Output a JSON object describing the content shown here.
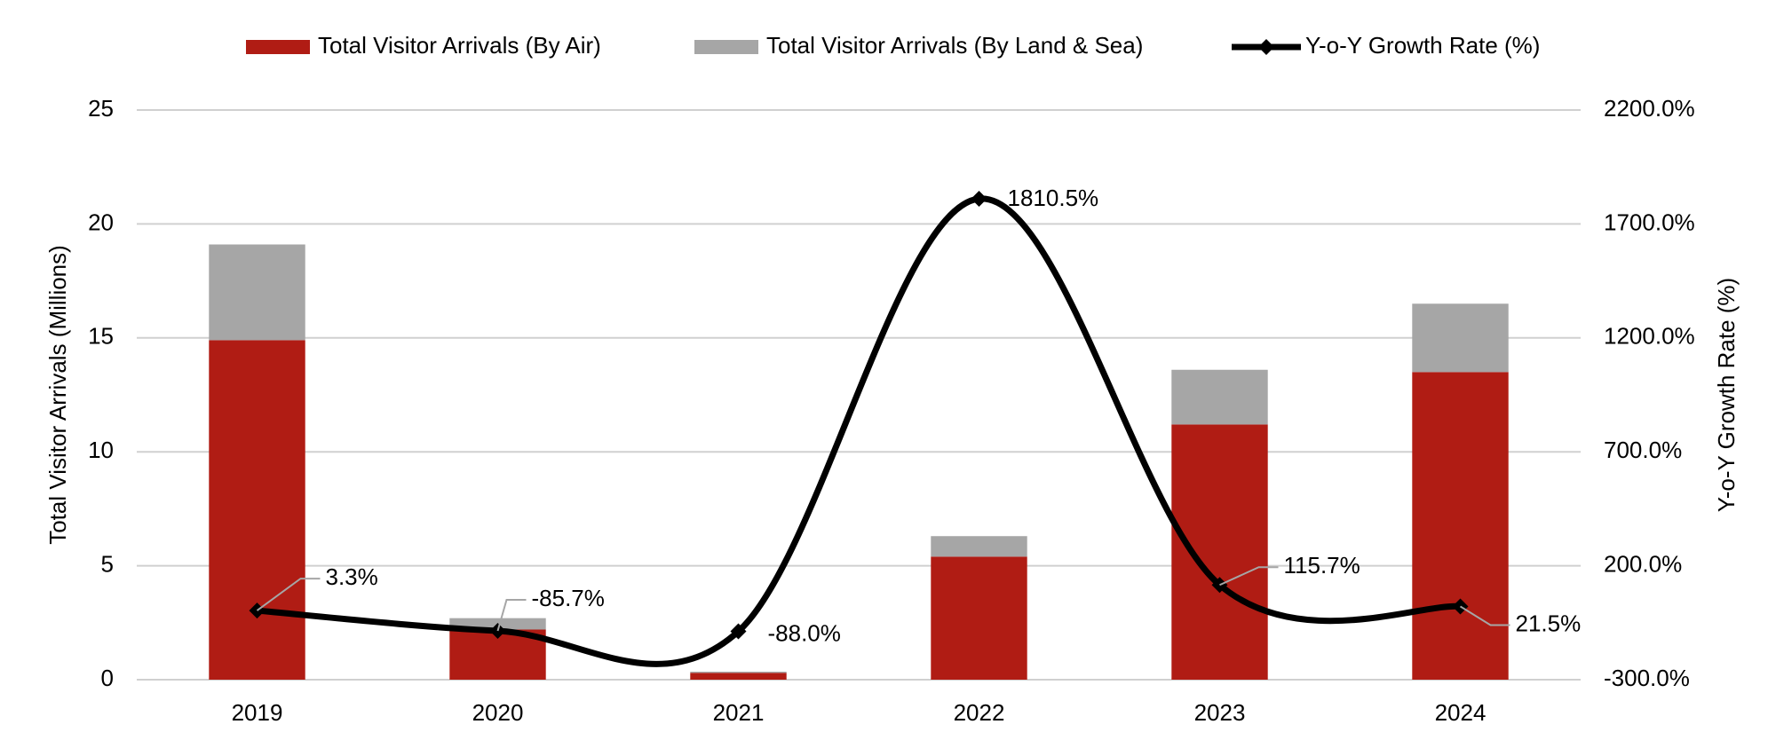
{
  "chart_data": {
    "type": "bar",
    "categories": [
      "2019",
      "2020",
      "2021",
      "2022",
      "2023",
      "2024"
    ],
    "y_label": "Total Visitor Arrivals (Millions)",
    "y2_label": "Y-o-Y Growth Rate (%)",
    "ylim": [
      0,
      25
    ],
    "yticks": [
      0,
      5,
      10,
      15,
      20,
      25
    ],
    "y2lim": [
      -300,
      2200
    ],
    "y2ticks": [
      {
        "value": -300,
        "label": "-300.0%"
      },
      {
        "value": 200,
        "label": "200.0%"
      },
      {
        "value": 700,
        "label": "700.0%"
      },
      {
        "value": 1200,
        "label": "1200.0%"
      },
      {
        "value": 1700,
        "label": "1700.0%"
      },
      {
        "value": 2200,
        "label": "2200.0%"
      }
    ],
    "grid": true,
    "legend": "top",
    "stacked": true,
    "series": [
      {
        "name": "Total Visitor Arrivals (By Air)",
        "type": "bar",
        "color": "#b01c14",
        "values": [
          14.9,
          2.2,
          0.3,
          5.4,
          11.2,
          13.5
        ]
      },
      {
        "name": "Total Visitor Arrivals (By Land & Sea)",
        "type": "bar",
        "color": "#a6a6a6",
        "values": [
          4.2,
          0.5,
          0.05,
          0.9,
          2.4,
          3.0
        ]
      },
      {
        "name": "Y-o-Y Growth Rate (%)",
        "type": "line",
        "axis": "y2",
        "color": "#000000",
        "values": [
          3.3,
          -85.7,
          -88.0,
          1810.5,
          115.7,
          21.5
        ],
        "value_labels": [
          "3.3%",
          "-85.7%",
          "-88.0%",
          "1810.5%",
          "115.7%",
          "21.5%"
        ]
      }
    ]
  }
}
